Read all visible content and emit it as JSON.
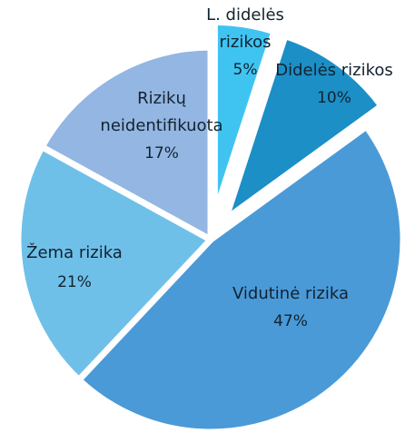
{
  "chart_data": {
    "type": "pie",
    "categories": [
      "L. didelės rizikos",
      "Didelės rizikos",
      "Vidutinė rizika",
      "Žema rizika",
      "Rizikų neidentifikuota"
    ],
    "values": [
      5,
      10,
      47,
      21,
      17
    ],
    "value_labels": [
      "5%",
      "10%",
      "47%",
      "21%",
      "17%"
    ],
    "colors": [
      "#3fc4f2",
      "#1b8fc6",
      "#4a9ad8",
      "#6fc0e8",
      "#93b6e2"
    ],
    "exploded": [
      true,
      true,
      false,
      false,
      false
    ]
  }
}
